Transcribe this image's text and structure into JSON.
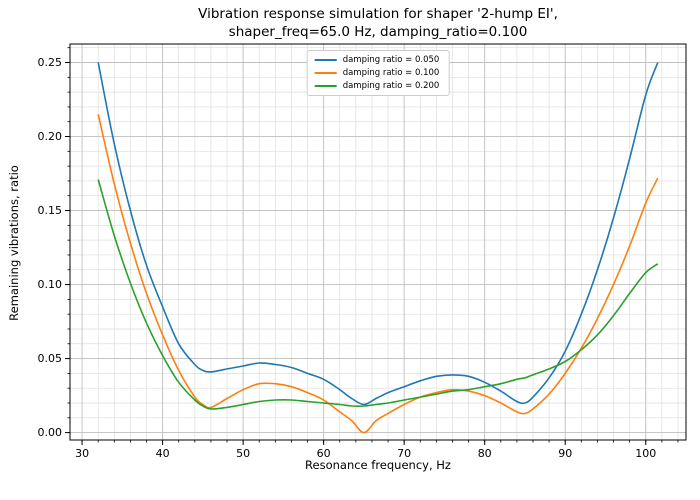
{
  "figure": {
    "title": "Vibration response simulation for shaper '2-hump EI',\nshaper_freq=65.0 Hz, damping_ratio=0.100"
  },
  "chart_data": {
    "type": "line",
    "title": "Vibration response simulation for shaper '2-hump EI', shaper_freq=65.0 Hz, damping_ratio=0.100",
    "xlabel": "Resonance frequency, Hz",
    "ylabel": "Remaining vibrations, ratio",
    "xlim": [
      28.5,
      105
    ],
    "ylim": [
      -0.005,
      0.2625
    ],
    "xticks": [
      30,
      40,
      50,
      60,
      70,
      80,
      90,
      100
    ],
    "yticks": [
      0.0,
      0.05,
      0.1,
      0.15,
      0.2,
      0.25
    ],
    "x_minor_step": 2,
    "y_minor_step": 0.01,
    "grid": true,
    "legend_position": "upper center",
    "grid_major_color": "#c0c0c0",
    "grid_minor_color": "#dedede",
    "x": [
      32,
      34,
      36,
      38,
      40,
      42,
      44,
      45,
      46,
      48,
      50,
      52,
      54,
      56,
      58,
      60,
      62,
      63.5,
      65,
      66.5,
      68,
      70,
      72,
      74,
      76,
      78,
      80,
      82,
      84,
      85,
      86,
      88,
      90,
      92,
      94,
      96,
      98,
      100,
      101.5
    ],
    "series": [
      {
        "name": "damping ratio = 0.050",
        "color": "#1f77b4",
        "values": [
          0.25,
          0.195,
          0.15,
          0.113,
          0.085,
          0.06,
          0.046,
          0.042,
          0.041,
          0.043,
          0.045,
          0.047,
          0.046,
          0.044,
          0.04,
          0.036,
          0.029,
          0.023,
          0.019,
          0.023,
          0.027,
          0.031,
          0.035,
          0.038,
          0.039,
          0.038,
          0.034,
          0.028,
          0.021,
          0.02,
          0.024,
          0.037,
          0.055,
          0.08,
          0.11,
          0.145,
          0.185,
          0.228,
          0.25
        ]
      },
      {
        "name": "damping ratio = 0.100",
        "color": "#ff7f0e",
        "values": [
          0.215,
          0.168,
          0.128,
          0.094,
          0.066,
          0.042,
          0.024,
          0.019,
          0.017,
          0.023,
          0.029,
          0.033,
          0.033,
          0.031,
          0.027,
          0.022,
          0.014,
          0.008,
          0.0,
          0.008,
          0.013,
          0.019,
          0.024,
          0.027,
          0.029,
          0.028,
          0.025,
          0.02,
          0.014,
          0.013,
          0.016,
          0.026,
          0.04,
          0.057,
          0.077,
          0.1,
          0.126,
          0.155,
          0.172
        ]
      },
      {
        "name": "damping ratio = 0.200",
        "color": "#2ca02c",
        "values": [
          0.171,
          0.133,
          0.101,
          0.074,
          0.052,
          0.034,
          0.022,
          0.018,
          0.016,
          0.017,
          0.019,
          0.021,
          0.022,
          0.022,
          0.021,
          0.02,
          0.019,
          0.018,
          0.018,
          0.019,
          0.02,
          0.022,
          0.024,
          0.026,
          0.028,
          0.029,
          0.031,
          0.033,
          0.036,
          0.037,
          0.039,
          0.043,
          0.048,
          0.056,
          0.066,
          0.079,
          0.094,
          0.108,
          0.114
        ]
      }
    ]
  }
}
